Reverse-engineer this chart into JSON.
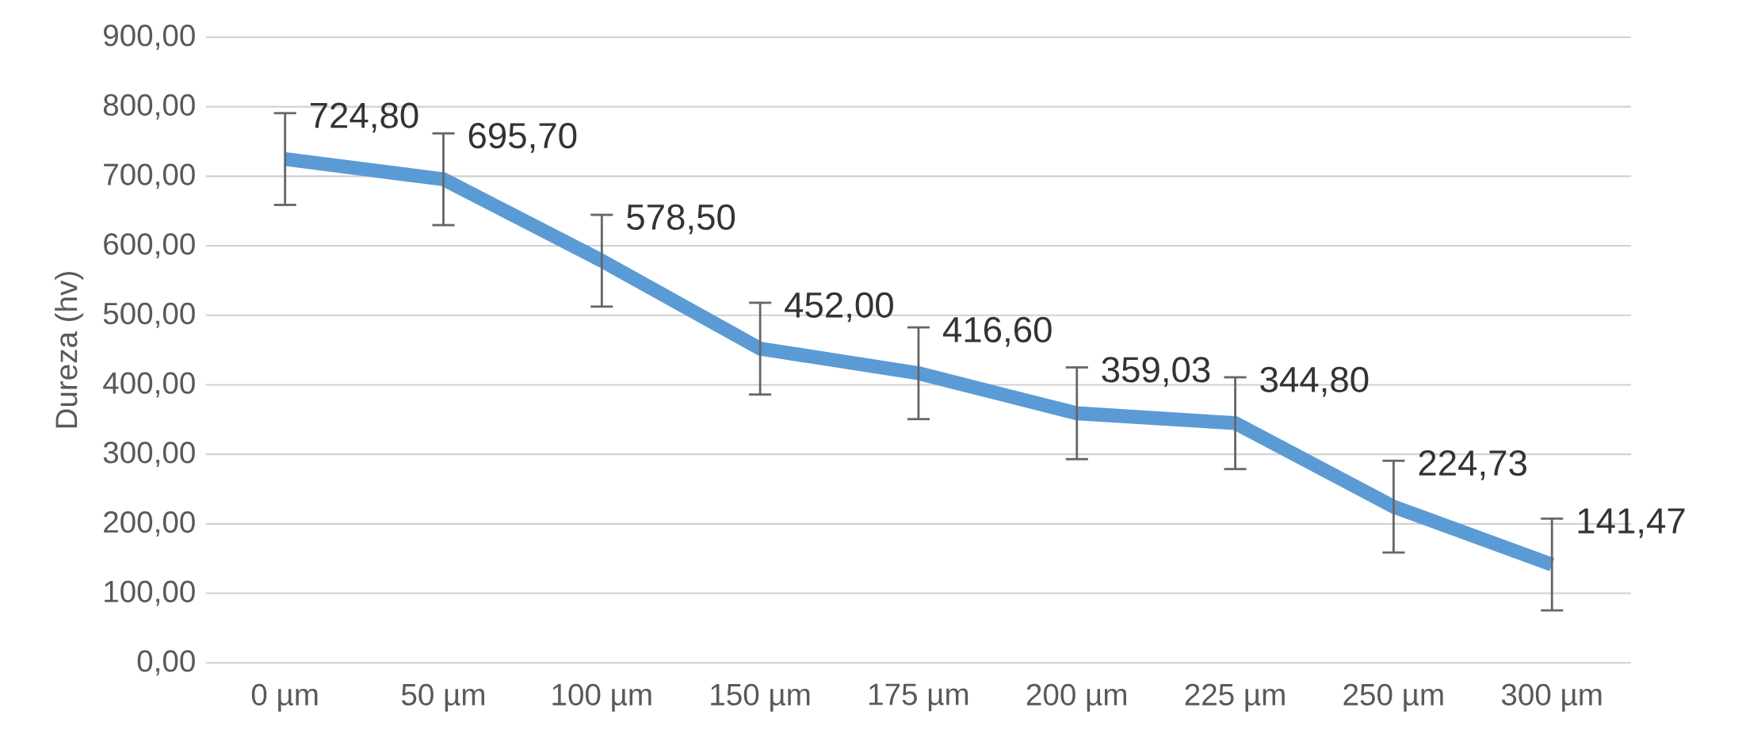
{
  "chart_data": {
    "type": "line",
    "ylabel": "Dureza (hv)",
    "categories": [
      "0 µm",
      "50 µm",
      "100 µm",
      "150 µm",
      "175 µm",
      "200 µm",
      "225 µm",
      "250 µm",
      "300 µm"
    ],
    "series": [
      {
        "color": "#5b9bd5",
        "values": [
          724.8,
          695.7,
          578.5,
          452.0,
          416.6,
          359.03,
          344.8,
          224.73,
          141.47
        ],
        "errors": [
          66,
          66,
          66,
          66,
          66,
          66,
          66,
          66,
          66
        ],
        "value_labels": [
          "724,80",
          "695,70",
          "578,50",
          "452,00",
          "416,60",
          "359,03",
          "344,80",
          "224,73",
          "141,47"
        ]
      }
    ],
    "ylim": [
      0,
      900
    ],
    "yticks": [
      {
        "value": 0,
        "label": "0,00"
      },
      {
        "value": 100,
        "label": "100,00"
      },
      {
        "value": 200,
        "label": "200,00"
      },
      {
        "value": 300,
        "label": "300,00"
      },
      {
        "value": 400,
        "label": "400,00"
      },
      {
        "value": 500,
        "label": "500,00"
      },
      {
        "value": 600,
        "label": "600,00"
      },
      {
        "value": 700,
        "label": "700,00"
      },
      {
        "value": 800,
        "label": "800,00"
      },
      {
        "value": 900,
        "label": "900,00"
      }
    ],
    "grid": "y",
    "marker": "none",
    "line_style": "solid"
  }
}
